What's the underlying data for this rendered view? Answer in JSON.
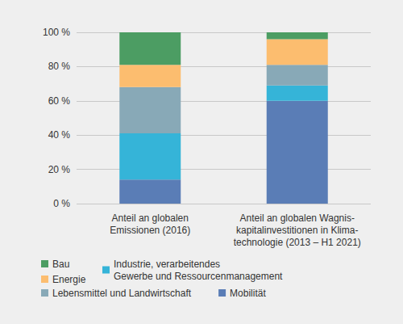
{
  "chart_data": {
    "type": "bar",
    "stacked": true,
    "grid": true,
    "legend": "bottom",
    "categories": [
      "Anteil an globalen\nEmissionen (2016)",
      "Anteil an globalen Wagnis-\nkapitalinvestitionen in Klima-\ntechnologie (2013 – H1 2021)"
    ],
    "series": [
      {
        "name": "Mobilität",
        "color": "#5a7db6",
        "values": [
          14,
          60
        ]
      },
      {
        "name": "Industrie, verarbeitendes\nGewerbe und Ressourcenmanagement",
        "color": "#35b4d8",
        "values": [
          27,
          9
        ]
      },
      {
        "name": "Lebensmittel und Landwirtschaft",
        "color": "#88a9b7",
        "values": [
          27,
          12
        ]
      },
      {
        "name": "Energie",
        "color": "#fcbd6f",
        "values": [
          13,
          15
        ]
      },
      {
        "name": "Bau",
        "color": "#4c9d63",
        "values": [
          19,
          4
        ]
      }
    ],
    "ylim": [
      0,
      100
    ],
    "yticks": [
      {
        "value": 0,
        "label": "0 %"
      },
      {
        "value": 20,
        "label": "20 %"
      },
      {
        "value": 40,
        "label": "40 %"
      },
      {
        "value": 60,
        "label": "60 %"
      },
      {
        "value": 80,
        "label": "80 %"
      },
      {
        "value": 100,
        "label": "100 %"
      }
    ]
  }
}
